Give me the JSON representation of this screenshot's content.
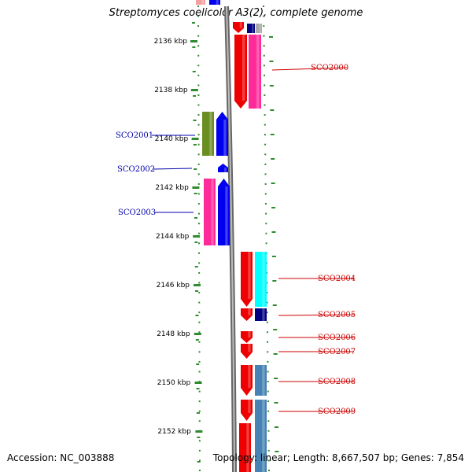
{
  "title": "Streptomyces coelicolor A3(2), complete genome",
  "footer": {
    "accession": "Accession: NC_003888",
    "stats": "Topology: linear; Length: 8,667,507 bp; Genes: 7,854"
  },
  "colors": {
    "tick": "#2e8b2e",
    "forward_label": "#cc0000",
    "reverse_label": "#0000aa",
    "backbone": "#888888"
  },
  "ticks": [
    {
      "label": "2136 kbp"
    },
    {
      "label": "2138 kbp"
    },
    {
      "label": "2140 kbp"
    },
    {
      "label": "2142 kbp"
    },
    {
      "label": "2144 kbp"
    },
    {
      "label": "2146 kbp"
    },
    {
      "label": "2148 kbp"
    },
    {
      "label": "2150 kbp"
    },
    {
      "label": "2152 kbp"
    }
  ],
  "gene_labels": [
    {
      "name": "SCO2000",
      "strand": "forward"
    },
    {
      "name": "SCO2001",
      "strand": "reverse"
    },
    {
      "name": "SCO2002",
      "strand": "reverse"
    },
    {
      "name": "SCO2003",
      "strand": "reverse"
    },
    {
      "name": "SCO2004",
      "strand": "forward"
    },
    {
      "name": "SCO2005",
      "strand": "forward"
    },
    {
      "name": "SCO2006",
      "strand": "forward"
    },
    {
      "name": "SCO2007",
      "strand": "forward"
    },
    {
      "name": "SCO2008",
      "strand": "forward"
    },
    {
      "name": "SCO2009",
      "strand": "forward"
    }
  ]
}
